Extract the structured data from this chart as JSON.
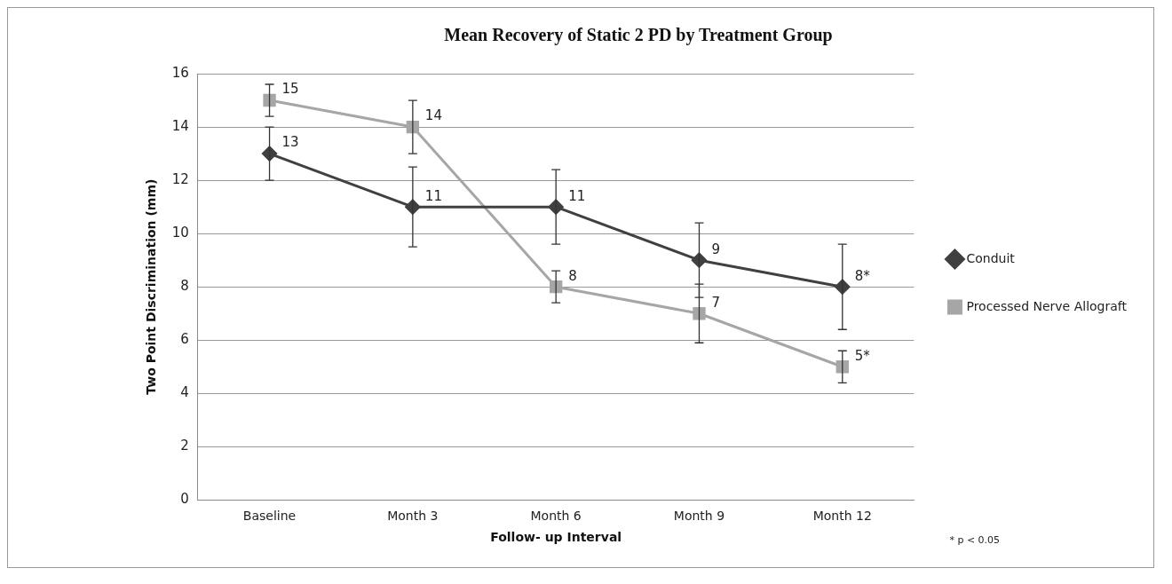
{
  "chart_data": {
    "type": "line",
    "title": "Mean Recovery of Static 2 PD by Treatment Group",
    "xlabel": "Follow- up Interval",
    "ylabel": "Two Point Discrimination (mm)",
    "categories": [
      "Baseline",
      "Month 3",
      "Month 6",
      "Month 9",
      "Month 12"
    ],
    "series": [
      {
        "name": "Conduit",
        "color": "#404040",
        "marker": "diamond",
        "values": [
          13,
          11,
          11,
          9,
          8
        ],
        "errors": [
          1,
          1.5,
          1.4,
          1.4,
          1.6
        ],
        "value_labels": [
          "13",
          "11",
          "11",
          "9",
          "8*"
        ]
      },
      {
        "name": "Processed Nerve Allograft",
        "color": "#a6a6a6",
        "marker": "square",
        "values": [
          15,
          14,
          8,
          7,
          5
        ],
        "errors": [
          0.6,
          1,
          0.6,
          1.1,
          0.6
        ],
        "value_labels": [
          "15",
          "14",
          "8",
          "7",
          "5*"
        ]
      }
    ],
    "ylim": [
      0,
      16
    ],
    "yticks": [
      0,
      2,
      4,
      6,
      8,
      10,
      12,
      14,
      16
    ],
    "grid": "y",
    "legend": "right",
    "annotations": [
      "* p < 0.05"
    ]
  }
}
